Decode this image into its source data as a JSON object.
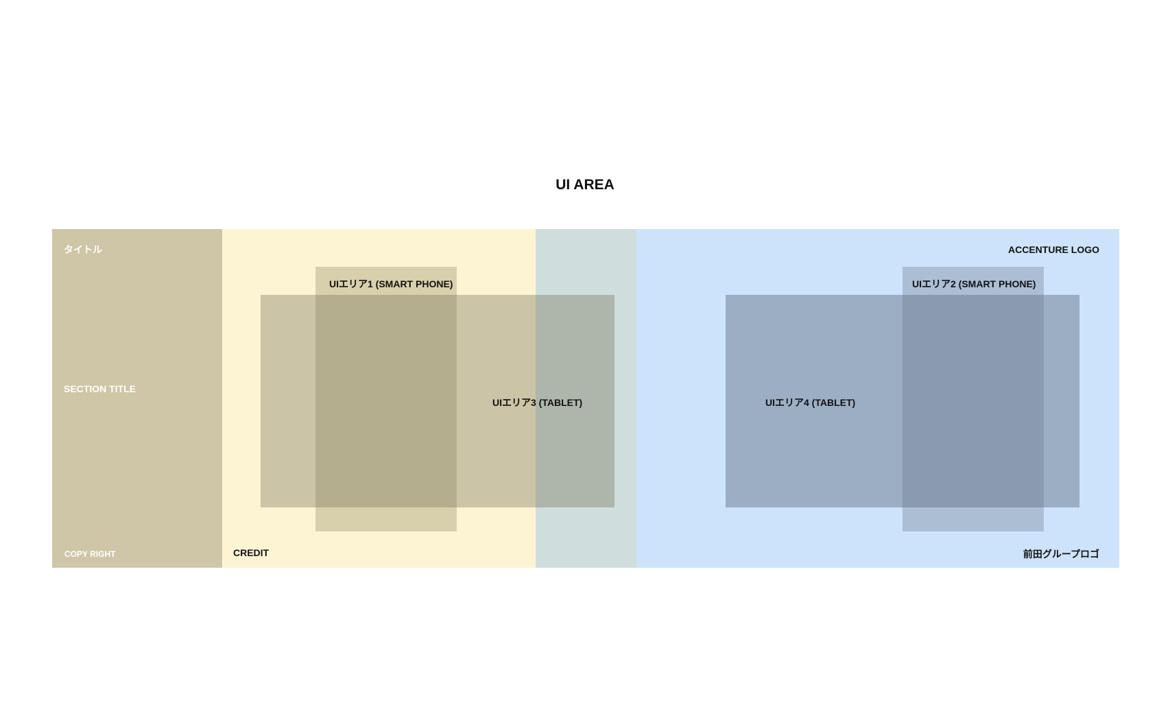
{
  "title": "UI AREA",
  "left_panel": {
    "title": "タイトル",
    "section_title": "SECTION TITLE",
    "copyright": "COPY RIGHT"
  },
  "credit": "CREDIT",
  "logos": {
    "accenture": "ACCENTURE LOGO",
    "maeda": "前田グループロゴ"
  },
  "ui_areas": {
    "area1": "UIエリア1 (SMART PHONE)",
    "area2": "UIエリア2 (SMART PHONE)",
    "area3": "UIエリア3 (TABLET)",
    "area4": "UIエリア4 (TABLET)"
  },
  "colors": {
    "left_panel": "#cec6a7",
    "yellow_panel": "#fdf4d4",
    "teal_panel": "#cfdedd",
    "blue_panel": "#cde3fb"
  }
}
